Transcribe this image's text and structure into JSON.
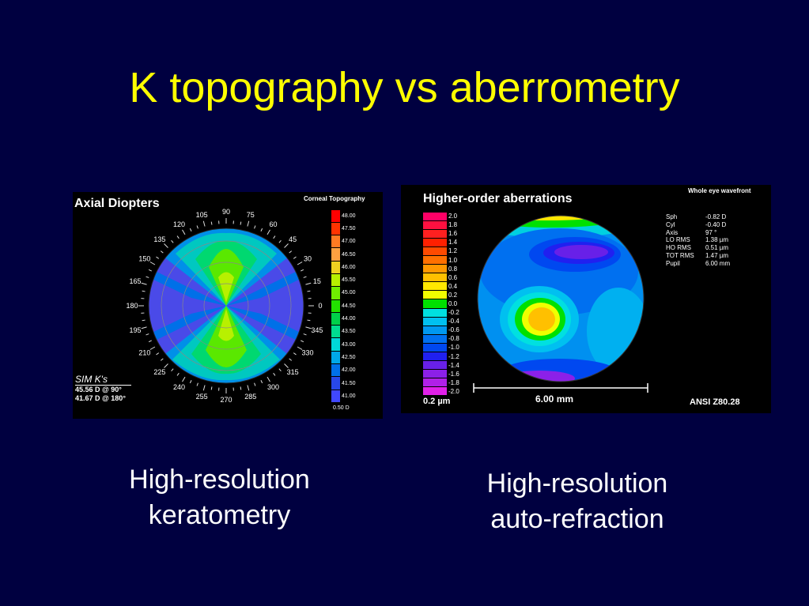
{
  "slide": {
    "title": "K topography vs aberrometry"
  },
  "topography": {
    "title": "Axial Diopters",
    "corner_label": "Corneal Topography",
    "axis_degrees": [
      "90",
      "75",
      "60",
      "45",
      "30",
      "15",
      "0",
      "345",
      "330",
      "315",
      "300",
      "285",
      "270",
      "255",
      "240",
      "225",
      "210",
      "195",
      "180",
      "165",
      "150",
      "135",
      "120",
      "105"
    ],
    "scale": {
      "values": [
        "48.00",
        "47.50",
        "47.00",
        "46.50",
        "46.00",
        "45.50",
        "45.00",
        "44.50",
        "44.00",
        "43.50",
        "43.00",
        "42.50",
        "42.00",
        "41.50",
        "41.00"
      ],
      "colors": [
        "#ff0000",
        "#ff3300",
        "#ff7a22",
        "#ffa040",
        "#f0d020",
        "#b8f000",
        "#70ee00",
        "#22e000",
        "#00d04a",
        "#00dc90",
        "#00d8d8",
        "#00a8e8",
        "#0070e8",
        "#2848e8",
        "#4048ff"
      ],
      "step": "0.50 D"
    },
    "sim_k": {
      "label": "SIM K's",
      "steep": "45.56 D @ 90°",
      "flat": "41.67 D @ 180°"
    }
  },
  "wavefront": {
    "title": "Higher-order aberrations",
    "corner_label": "Whole eye wavefront",
    "scale": {
      "values": [
        "2.0",
        "1.8",
        "1.6",
        "1.4",
        "1.2",
        "1.0",
        "0.8",
        "0.6",
        "0.4",
        "0.2",
        "0.0",
        "-0.2",
        "-0.4",
        "-0.6",
        "-0.8",
        "-1.0",
        "-1.2",
        "-1.4",
        "-1.6",
        "-1.8",
        "-2.0"
      ],
      "colors": [
        "#ff0066",
        "#ff1040",
        "#ff2020",
        "#ff2000",
        "#ff4a00",
        "#ff7000",
        "#ff9800",
        "#ffc000",
        "#ffe800",
        "#f0ff00",
        "#00e000",
        "#00e0e0",
        "#00c0f0",
        "#0098f0",
        "#0070f0",
        "#0048f0",
        "#2020f0",
        "#6820e8",
        "#8c20e8",
        "#b020e8",
        "#e020e8"
      ],
      "step": "0.2 µm"
    },
    "stats": [
      {
        "label": "Sph",
        "value": "-0.82 D"
      },
      {
        "label": "Cyl",
        "value": "-0.40 D"
      },
      {
        "label": "Axis",
        "value": "97 °"
      },
      {
        "label": "LO RMS",
        "value": "1.38 µm"
      },
      {
        "label": "HO RMS",
        "value": "0.51 µm"
      },
      {
        "label": "TOT RMS",
        "value": "1.47 µm"
      },
      {
        "label": "Pupil",
        "value": "6.00 mm"
      }
    ],
    "pupil_scale_label": "6.00 mm",
    "standard": "ANSI Z80.28"
  },
  "captions": {
    "left": [
      "High-resolution",
      "keratometry"
    ],
    "right": [
      "High-resolution",
      "auto-refraction"
    ]
  }
}
